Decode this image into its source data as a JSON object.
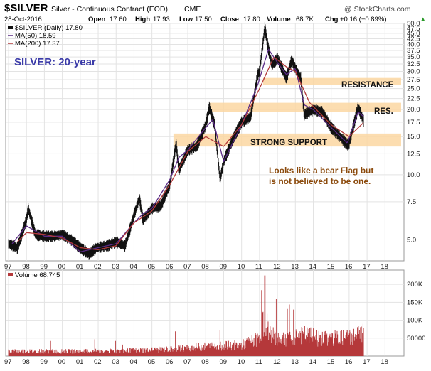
{
  "header": {
    "symbol": "$SILVER",
    "description": "Silver - Continuous Contract (EOD)",
    "exchange": "CME",
    "brand": "@ StockCharts.com",
    "date": "28-Oct-2016",
    "open_label": "Open",
    "open": "17.60",
    "high_label": "High",
    "high": "17.93",
    "low_label": "Low",
    "low": "17.50",
    "close_label": "Close",
    "close": "17.80",
    "volume_label": "Volume",
    "volume": "68.7K",
    "chg_label": "Chg",
    "chg": "+0.16 (+0.89%)",
    "chg_arrow": "▲"
  },
  "legend": {
    "price": "$SILVER (Daily) 17.80",
    "ma50": "MA(50) 18.59",
    "ma200": "MA(200) 17.37",
    "volume": "Volume 68,745"
  },
  "annotations": {
    "title": "SILVER: 20-year",
    "resistance": "RESISTANCE",
    "res": "RES.",
    "strong_support": "STRONG SUPPORT",
    "note_line1": "Looks like a bear Flag but",
    "note_line2": "is not believed to be one."
  },
  "colors": {
    "price_bars": "#111111",
    "ma50": "#5a2a86",
    "ma200": "#b23a3a",
    "band": "#fbd7a2",
    "volume": "#b5383a",
    "title_blue": "#3a3aa8",
    "note_brown": "#8b4a0c",
    "up_arrow": "#2a9a2a"
  },
  "chart_data": {
    "type": "line",
    "title": "$SILVER Silver - Continuous Contract (EOD)",
    "y_scale": "log",
    "ylim": [
      4,
      50
    ],
    "x_ticks": [
      "97",
      "98",
      "99",
      "00",
      "01",
      "02",
      "03",
      "04",
      "05",
      "06",
      "07",
      "08",
      "09",
      "10",
      "11",
      "12",
      "13",
      "14",
      "15",
      "16",
      "17",
      "18"
    ],
    "y_ticks": [
      5.0,
      7.5,
      10.0,
      12.5,
      15.0,
      17.5,
      20.0,
      22.5,
      25.0,
      27.5,
      30.0,
      32.5,
      35.0,
      37.5,
      40.0,
      42.5,
      45.0,
      47.5,
      50.0
    ],
    "volume_ticks": [
      50000,
      100000,
      150000,
      200000
    ],
    "volume_tick_labels": [
      "50000",
      "100K",
      "150K",
      "200K"
    ],
    "grid": true,
    "bands": [
      {
        "name": "RESISTANCE",
        "from_year": 2011.2,
        "to_year": 2018.9,
        "y_low": 26.0,
        "y_high": 28.0
      },
      {
        "name": "RES.",
        "from_year": 2008.2,
        "to_year": 2018.9,
        "y_low": 19.5,
        "y_high": 21.5
      },
      {
        "name": "STRONG SUPPORT",
        "from_year": 2006.2,
        "to_year": 2018.9,
        "y_low": 13.5,
        "y_high": 15.5
      }
    ],
    "series": [
      {
        "name": "$SILVER (Daily)",
        "x": [
          1997.0,
          1997.5,
          1998.0,
          1998.1,
          1998.5,
          1999.0,
          1999.5,
          2000.0,
          2000.5,
          2001.0,
          2001.5,
          2001.9,
          2002.5,
          2003.0,
          2003.5,
          2004.0,
          2004.3,
          2004.5,
          2005.0,
          2005.5,
          2006.0,
          2006.35,
          2006.5,
          2007.0,
          2007.5,
          2008.0,
          2008.2,
          2008.5,
          2008.8,
          2009.0,
          2009.5,
          2010.0,
          2010.5,
          2010.9,
          2011.0,
          2011.3,
          2011.5,
          2011.7,
          2012.0,
          2012.5,
          2012.8,
          2013.0,
          2013.3,
          2013.5,
          2014.0,
          2014.5,
          2015.0,
          2015.5,
          2015.9,
          2016.0,
          2016.5,
          2016.8
        ],
        "values": [
          4.8,
          4.6,
          6.2,
          7.0,
          5.3,
          5.2,
          5.2,
          5.3,
          5.0,
          4.6,
          4.3,
          4.6,
          4.7,
          4.9,
          4.7,
          6.5,
          7.8,
          6.2,
          7.0,
          7.2,
          9.0,
          14.0,
          10.5,
          13.0,
          13.5,
          17.0,
          20.5,
          17.0,
          9.5,
          11.5,
          14.5,
          17.5,
          18.5,
          29.0,
          30.0,
          48.0,
          38.0,
          32.0,
          34.5,
          28.0,
          34.0,
          31.0,
          28.0,
          19.0,
          20.0,
          19.5,
          16.5,
          15.0,
          13.8,
          14.0,
          20.5,
          17.8
        ]
      },
      {
        "name": "MA(50)",
        "x": [
          1997.2,
          1998.0,
          1999.0,
          2000.0,
          2001.0,
          2002.0,
          2003.0,
          2004.0,
          2004.5,
          2005.0,
          2006.0,
          2006.5,
          2007.0,
          2008.0,
          2008.4,
          2009.0,
          2009.5,
          2010.0,
          2010.9,
          2011.5,
          2012.0,
          2012.5,
          2013.0,
          2013.5,
          2014.0,
          2015.0,
          2015.9,
          2016.5,
          2016.8
        ],
        "values": [
          4.8,
          5.8,
          5.2,
          5.2,
          4.4,
          4.6,
          4.8,
          6.0,
          6.6,
          7.0,
          9.5,
          12.0,
          13.0,
          16.5,
          18.0,
          11.5,
          14.0,
          17.0,
          26.0,
          38.0,
          33.0,
          29.0,
          31.0,
          21.0,
          20.0,
          16.5,
          14.0,
          19.5,
          18.6
        ]
      },
      {
        "name": "MA(200)",
        "x": [
          1997.5,
          1998.0,
          1999.0,
          2000.0,
          2001.0,
          2002.0,
          2003.0,
          2004.0,
          2005.0,
          2006.0,
          2007.0,
          2008.0,
          2009.0,
          2010.0,
          2011.0,
          2011.8,
          2012.5,
          2013.0,
          2013.8,
          2015.0,
          2016.0,
          2016.8
        ],
        "values": [
          4.9,
          5.4,
          5.3,
          5.1,
          4.6,
          4.5,
          4.7,
          6.0,
          6.8,
          9.0,
          12.8,
          15.0,
          13.5,
          17.0,
          25.0,
          35.0,
          31.5,
          30.0,
          21.5,
          17.0,
          15.0,
          17.4
        ]
      },
      {
        "name": "Volume",
        "x": [
          1997.0,
          2000.0,
          2003.0,
          2006.0,
          2008.0,
          2010.0,
          2010.9,
          2011.3,
          2011.6,
          2012.5,
          2013.0,
          2013.5,
          2014.5,
          2016.0,
          2016.8
        ],
        "values": [
          15000,
          14000,
          15000,
          20000,
          28000,
          32000,
          50000,
          110000,
          60000,
          52000,
          60000,
          62000,
          50000,
          55000,
          68745
        ]
      }
    ]
  }
}
